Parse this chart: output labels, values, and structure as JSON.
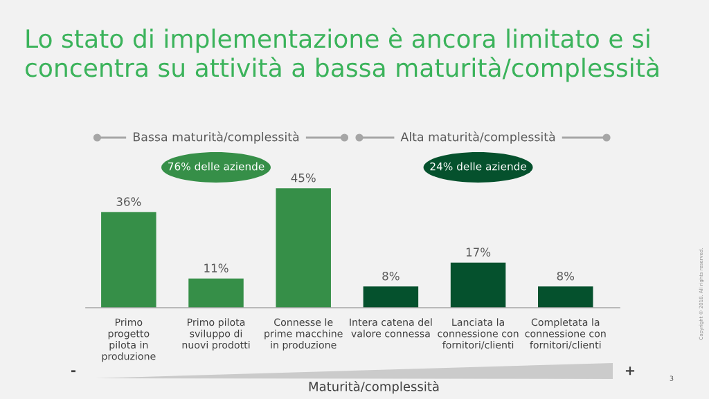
{
  "chart_data": {
    "type": "bar",
    "title": "Lo stato di implementazione è ancora limitato e si concentra su attività a bassa maturità/complessità",
    "xlabel": "Maturità/complessità",
    "categories": [
      "Primo\nprogetto\npilota in\nproduzione",
      "Primo pilota\nsviluppo di\nnuovi prodotti",
      "Connesse le\nprime macchine\nin produzione",
      "Intera catena del\nvalore connessa",
      "Lanciata la\nconnessione con\nfornitori/clienti",
      "Completata la\nconnessione con\nfornitori/clienti"
    ],
    "values": [
      36,
      11,
      45,
      8,
      17,
      8
    ],
    "value_labels": [
      "36%",
      "11%",
      "45%",
      "8%",
      "17%",
      "8%"
    ],
    "colors": [
      "#368f48",
      "#368f48",
      "#368f48",
      "#05512d",
      "#05512d",
      "#05512d"
    ],
    "tick_labels": "x",
    "annotations": [
      "Bassa maturità/complessità",
      "Alta maturità/complessità",
      "76% delle aziende",
      "24% delle aziende",
      "-",
      "+",
      "3",
      "Copyright © 2018. All rights reserved."
    ]
  }
}
